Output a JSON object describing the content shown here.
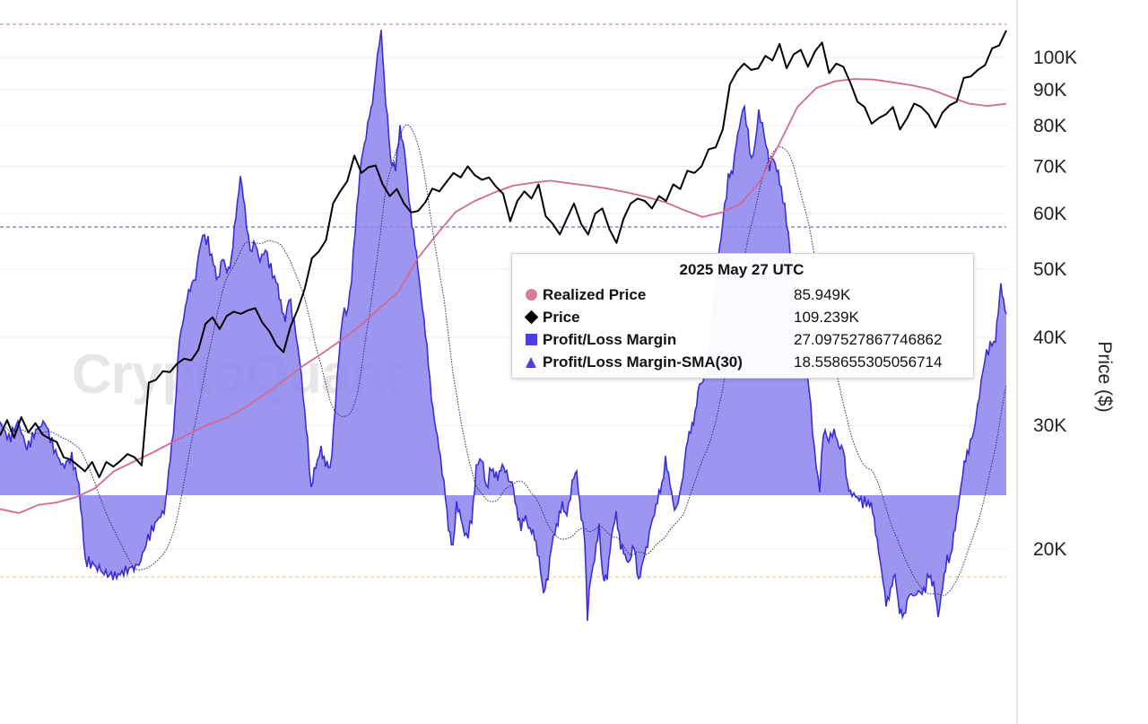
{
  "watermark": "CryptoQuant",
  "colors": {
    "price": "#000000",
    "realized_price": "#d06a92",
    "margin_fill": "#8c84ee",
    "margin_line": "#3c2fd0",
    "sma": "#2c2c5c",
    "ref_top": "#b07a8c",
    "ref_mid": "#55557a",
    "ref_bottom": "#d8c96a",
    "grid": "#ececf0"
  },
  "chart_data": {
    "type": "line",
    "title": "",
    "xlabel": "",
    "ylabel": "Price ($)",
    "y_scale": "log",
    "y_ticks": [
      {
        "value": 20000,
        "label": "20K"
      },
      {
        "value": 30000,
        "label": "30K"
      },
      {
        "value": 40000,
        "label": "40K"
      },
      {
        "value": 50000,
        "label": "50K"
      },
      {
        "value": 60000,
        "label": "60K"
      },
      {
        "value": 70000,
        "label": "70K"
      },
      {
        "value": 80000,
        "label": "80K"
      },
      {
        "value": 90000,
        "label": "90K"
      },
      {
        "value": 100000,
        "label": "100K"
      }
    ],
    "grid": true,
    "legend": "tooltip",
    "tooltip": {
      "title": "2025 May 27 UTC",
      "rows": [
        {
          "marker": "circle",
          "color": "#d97aa0",
          "name": "Realized Price",
          "value": "85.949K"
        },
        {
          "marker": "diamond",
          "color": "#000000",
          "name": "Price",
          "value": "109.239K"
        },
        {
          "marker": "square",
          "color": "#4c3fe0",
          "name": "Profit/Loss Margin",
          "value": "27.097527867746862"
        },
        {
          "marker": "triangle",
          "color": "#4c3fe0",
          "name": "Profit/Loss Margin-SMA(30)",
          "value": "18.558655305056714"
        }
      ]
    },
    "series": [
      {
        "name": "Price",
        "values": [
          29000,
          30500,
          28800,
          30800,
          29300,
          30200,
          29100,
          28700,
          28400,
          27000,
          26800,
          26300,
          25800,
          26600,
          25300,
          26600,
          26200,
          26700,
          27300,
          27000,
          26300,
          34500,
          34800,
          35800,
          35700,
          36700,
          37300,
          37100,
          38400,
          41800,
          42700,
          41100,
          42900,
          43500,
          43200,
          43700,
          44000,
          42000,
          40800,
          39000,
          38100,
          41500,
          43800,
          46900,
          51800,
          53000,
          55000,
          62000,
          64500,
          66700,
          72500,
          68500,
          69800,
          70200,
          66000,
          63500,
          65000,
          62000,
          60200,
          60500,
          62200,
          65100,
          64500,
          66500,
          68500,
          67500,
          70000,
          68000,
          67000,
          67500,
          65500,
          64000,
          58500,
          62500,
          64500,
          63000,
          66000,
          59500,
          58000,
          56000,
          59000,
          62000,
          58000,
          56000,
          60000,
          61000,
          57000,
          54500,
          59000,
          62000,
          63000,
          62500,
          61000,
          63500,
          62500,
          66000,
          65000,
          69000,
          68500,
          70000,
          74000,
          74500,
          79000,
          91500,
          95500,
          98000,
          96000,
          96500,
          100500,
          99000,
          104500,
          96500,
          101000,
          102500,
          97000,
          102000,
          105000,
          95000,
          98000,
          97000,
          92000,
          86500,
          85000,
          80500,
          82000,
          83000,
          85000,
          79000,
          82000,
          86000,
          85000,
          83000,
          79500,
          83500,
          85500,
          86500,
          93500,
          94000,
          96000,
          97500,
          103000,
          104000,
          109239
        ]
      },
      {
        "name": "Realized Price",
        "values": [
          22800,
          22500,
          23100,
          23300,
          23700,
          24400,
          25800,
          26600,
          27400,
          28300,
          29200,
          30100,
          30800,
          31900,
          33300,
          34800,
          36500,
          38000,
          39700,
          41600,
          44000,
          46500,
          51800,
          56000,
          60300,
          62500,
          64200,
          65700,
          66300,
          66800,
          66200,
          65700,
          65100,
          64300,
          63400,
          62300,
          60700,
          59300,
          60200,
          61900,
          66500,
          75000,
          85000,
          90500,
          92500,
          93200,
          93000,
          92200,
          91300,
          90100,
          88000,
          86000,
          85300,
          85949
        ]
      }
    ]
  }
}
